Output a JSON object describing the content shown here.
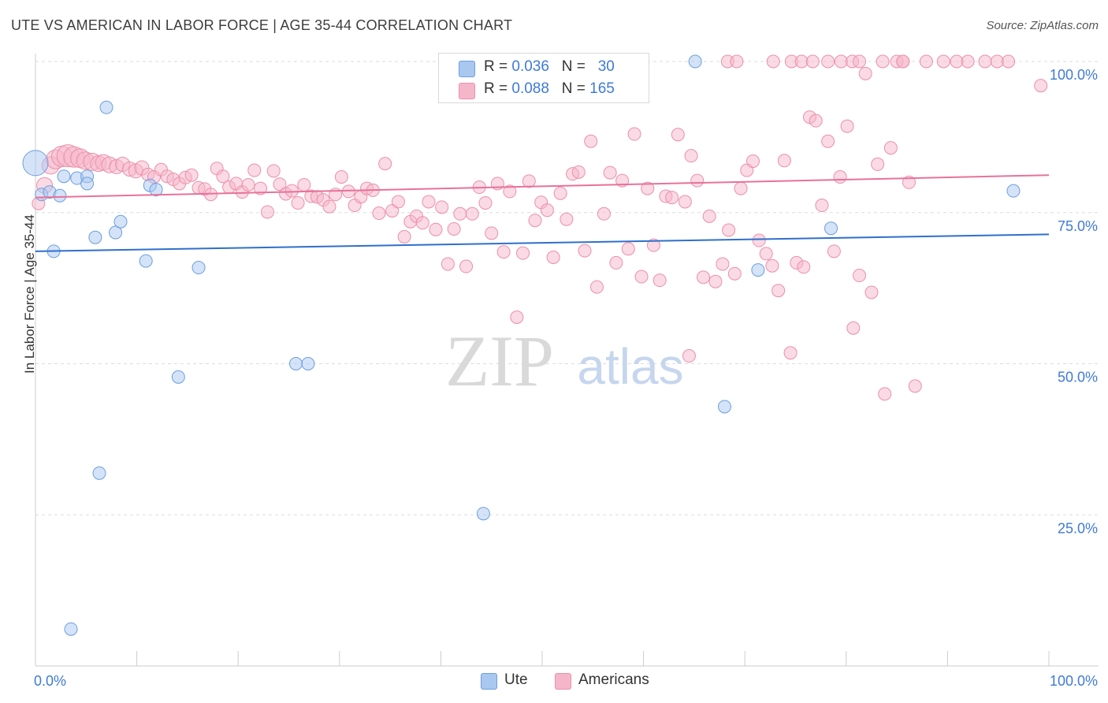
{
  "header": {
    "title": "UTE VS AMERICAN IN LABOR FORCE | AGE 35-44 CORRELATION CHART",
    "source": "Source: ZipAtlas.com"
  },
  "watermark": {
    "zip": "ZIP",
    "atlas": "atlas"
  },
  "legend": {
    "rows": [
      {
        "r_label": "R = ",
        "r_value": "0.036",
        "n_label": "N = ",
        "n_value": "30",
        "color": "#a9c8f0"
      },
      {
        "r_label": "R = ",
        "r_value": "0.088",
        "n_label": "N = ",
        "n_value": "165",
        "color": "#f6b6c9"
      }
    ]
  },
  "bottom_legend": {
    "items": [
      {
        "label": "Ute",
        "color": "#a9c8f0"
      },
      {
        "label": "Americans",
        "color": "#f6b6c9"
      }
    ]
  },
  "colors": {
    "ute_fill": "#a9c8f0",
    "ute_stroke": "#6d9ee0",
    "ute_line": "#2f6fcc",
    "am_fill": "#f6b6c9",
    "am_stroke": "#ec8fab",
    "am_line": "#e8719a",
    "tick_label": "#3f7ad6",
    "grid": "#dddddd",
    "axis": "#cccccc"
  },
  "chart_data": {
    "type": "scatter",
    "title": "UTE VS AMERICAN IN LABOR FORCE | AGE 35-44 CORRELATION CHART",
    "xlabel": "",
    "ylabel": "In Labor Force | Age 35-44",
    "xlim": [
      0,
      100
    ],
    "ylim": [
      0,
      100
    ],
    "x_tick_labels": [
      "0.0%",
      "100.0%"
    ],
    "y_tick_labels": [
      "25.0%",
      "50.0%",
      "75.0%",
      "100.0%"
    ],
    "y_ticks": [
      25,
      50,
      75,
      100
    ],
    "grid": true,
    "legend_position": "top-center",
    "series": [
      {
        "name": "Ute",
        "r": 0.036,
        "n": 30,
        "trend": [
          [
            0,
            68.6
          ],
          [
            100,
            71.4
          ]
        ],
        "points": [
          [
            0.0,
            83.2,
            16
          ],
          [
            0.6,
            78.0,
            8
          ],
          [
            1.4,
            78.4,
            8
          ],
          [
            2.4,
            77.8,
            8
          ],
          [
            1.8,
            68.6,
            8
          ],
          [
            2.8,
            81.0,
            8
          ],
          [
            4.1,
            80.7,
            8
          ],
          [
            5.1,
            81.0,
            8
          ],
          [
            5.1,
            79.8,
            8
          ],
          [
            5.9,
            70.9,
            8
          ],
          [
            7.0,
            92.4,
            8
          ],
          [
            7.9,
            71.7,
            8
          ],
          [
            8.4,
            73.5,
            8
          ],
          [
            10.9,
            67.0,
            8
          ],
          [
            11.3,
            79.5,
            8
          ],
          [
            11.9,
            78.8,
            8
          ],
          [
            16.1,
            65.9,
            8
          ],
          [
            14.1,
            47.8,
            8
          ],
          [
            6.3,
            31.9,
            8
          ],
          [
            3.5,
            6.1,
            8
          ],
          [
            25.7,
            50.0,
            8
          ],
          [
            26.9,
            50.0,
            8
          ],
          [
            44.2,
            25.2,
            8
          ],
          [
            65.1,
            100.0,
            8
          ],
          [
            68.0,
            42.9,
            8
          ],
          [
            71.3,
            65.5,
            8
          ],
          [
            78.5,
            72.4,
            8
          ],
          [
            96.5,
            78.6,
            8
          ]
        ]
      },
      {
        "name": "Americans",
        "r": 0.088,
        "n": 165,
        "trend": [
          [
            0,
            77.5
          ],
          [
            100,
            81.2
          ]
        ],
        "points": [
          [
            0.3,
            76.5,
            8
          ],
          [
            0.9,
            79.5,
            10
          ],
          [
            1.5,
            82.8,
            11
          ],
          [
            2.0,
            83.8,
            12
          ],
          [
            2.6,
            84.3,
            13
          ],
          [
            3.2,
            84.4,
            14
          ],
          [
            3.8,
            84.2,
            13
          ],
          [
            4.4,
            84.0,
            12
          ],
          [
            4.9,
            83.6,
            11
          ],
          [
            5.6,
            83.4,
            11
          ],
          [
            6.2,
            83.1,
            10
          ],
          [
            6.7,
            83.3,
            10
          ],
          [
            7.3,
            82.9,
            10
          ],
          [
            8.0,
            82.6,
            9
          ],
          [
            8.6,
            83.0,
            9
          ],
          [
            9.3,
            82.2,
            9
          ],
          [
            9.9,
            81.9,
            9
          ],
          [
            10.5,
            82.4,
            9
          ],
          [
            11.1,
            81.3,
            8
          ],
          [
            11.7,
            80.9,
            8
          ],
          [
            12.4,
            82.1,
            8
          ],
          [
            13.0,
            81.0,
            8
          ],
          [
            13.6,
            80.5,
            8
          ],
          [
            14.2,
            79.8,
            8
          ],
          [
            14.8,
            80.8,
            8
          ],
          [
            15.4,
            81.2,
            8
          ],
          [
            16.1,
            79.1,
            8
          ],
          [
            16.7,
            78.9,
            8
          ],
          [
            17.3,
            78.0,
            8
          ],
          [
            17.9,
            82.3,
            8
          ],
          [
            18.5,
            81.0,
            8
          ],
          [
            19.1,
            79.2,
            8
          ],
          [
            19.8,
            79.8,
            8
          ],
          [
            20.4,
            78.4,
            8
          ],
          [
            21.0,
            79.6,
            8
          ],
          [
            21.6,
            82.0,
            8
          ],
          [
            22.2,
            79.0,
            8
          ],
          [
            22.9,
            75.1,
            8
          ],
          [
            23.5,
            81.9,
            8
          ],
          [
            24.1,
            79.7,
            8
          ],
          [
            24.7,
            78.1,
            8
          ],
          [
            25.3,
            78.6,
            8
          ],
          [
            25.9,
            76.6,
            8
          ],
          [
            26.5,
            79.6,
            8
          ],
          [
            27.2,
            77.7,
            8
          ],
          [
            27.8,
            77.6,
            8
          ],
          [
            28.4,
            77.1,
            8
          ],
          [
            29.0,
            76.0,
            8
          ],
          [
            29.6,
            78.0,
            8
          ],
          [
            30.2,
            80.9,
            8
          ],
          [
            30.9,
            78.5,
            8
          ],
          [
            31.5,
            76.2,
            8
          ],
          [
            32.1,
            77.6,
            8
          ],
          [
            32.7,
            79.0,
            8
          ],
          [
            33.3,
            78.7,
            8
          ],
          [
            33.9,
            74.9,
            8
          ],
          [
            34.5,
            83.1,
            8
          ],
          [
            35.2,
            75.3,
            8
          ],
          [
            35.8,
            76.8,
            8
          ],
          [
            36.4,
            71.0,
            8
          ],
          [
            37.0,
            73.5,
            8
          ],
          [
            37.6,
            74.4,
            8
          ],
          [
            38.2,
            73.3,
            8
          ],
          [
            38.8,
            76.8,
            8
          ],
          [
            39.5,
            72.2,
            8
          ],
          [
            40.1,
            75.9,
            8
          ],
          [
            40.7,
            66.5,
            8
          ],
          [
            41.3,
            72.3,
            8
          ],
          [
            41.9,
            74.8,
            8
          ],
          [
            42.5,
            66.1,
            8
          ],
          [
            43.1,
            74.8,
            8
          ],
          [
            43.8,
            79.2,
            8
          ],
          [
            44.4,
            76.6,
            8
          ],
          [
            45.0,
            71.6,
            8
          ],
          [
            45.6,
            79.8,
            8
          ],
          [
            46.2,
            68.5,
            8
          ],
          [
            46.8,
            78.5,
            8
          ],
          [
            47.5,
            57.7,
            8
          ],
          [
            48.1,
            68.3,
            8
          ],
          [
            48.7,
            80.2,
            8
          ],
          [
            49.3,
            73.7,
            8
          ],
          [
            49.9,
            76.7,
            8
          ],
          [
            50.5,
            75.4,
            8
          ],
          [
            51.1,
            67.6,
            8
          ],
          [
            51.8,
            78.2,
            8
          ],
          [
            52.4,
            73.9,
            8
          ],
          [
            53.0,
            81.4,
            8
          ],
          [
            53.6,
            81.7,
            8
          ],
          [
            54.2,
            68.7,
            8
          ],
          [
            54.8,
            86.8,
            8
          ],
          [
            55.4,
            62.7,
            8
          ],
          [
            56.1,
            74.8,
            8
          ],
          [
            56.7,
            81.6,
            8
          ],
          [
            57.3,
            66.7,
            8
          ],
          [
            57.9,
            80.3,
            8
          ],
          [
            58.5,
            69.0,
            8
          ],
          [
            59.1,
            88.0,
            8
          ],
          [
            59.8,
            64.4,
            8
          ],
          [
            60.4,
            79.0,
            8
          ],
          [
            61.0,
            69.6,
            8
          ],
          [
            61.6,
            63.8,
            8
          ],
          [
            62.2,
            77.7,
            8
          ],
          [
            62.8,
            77.5,
            8
          ],
          [
            63.4,
            87.9,
            8
          ],
          [
            64.1,
            76.8,
            8
          ],
          [
            64.7,
            84.4,
            8
          ],
          [
            65.3,
            80.3,
            8
          ],
          [
            65.9,
            64.3,
            8
          ],
          [
            66.5,
            74.4,
            8
          ],
          [
            67.1,
            63.6,
            8
          ],
          [
            67.8,
            66.5,
            8
          ],
          [
            68.4,
            72.1,
            8
          ],
          [
            69.0,
            64.9,
            8
          ],
          [
            69.6,
            79.0,
            8
          ],
          [
            70.2,
            82.0,
            8
          ],
          [
            70.8,
            83.5,
            8
          ],
          [
            71.4,
            70.4,
            8
          ],
          [
            72.1,
            68.2,
            8
          ],
          [
            72.7,
            66.2,
            8
          ],
          [
            73.3,
            62.1,
            8
          ],
          [
            73.9,
            83.6,
            8
          ],
          [
            74.5,
            51.8,
            8
          ],
          [
            75.1,
            66.7,
            8
          ],
          [
            75.8,
            66.0,
            8
          ],
          [
            76.4,
            90.8,
            8
          ],
          [
            77.0,
            90.2,
            8
          ],
          [
            77.6,
            76.2,
            8
          ],
          [
            78.2,
            86.8,
            8
          ],
          [
            78.8,
            68.6,
            8
          ],
          [
            79.4,
            80.9,
            8
          ],
          [
            80.1,
            89.3,
            8
          ],
          [
            80.7,
            55.9,
            8
          ],
          [
            81.3,
            64.6,
            8
          ],
          [
            81.9,
            98.0,
            8
          ],
          [
            82.5,
            61.8,
            8
          ],
          [
            83.1,
            83.0,
            8
          ],
          [
            83.8,
            45.0,
            8
          ],
          [
            84.4,
            85.7,
            8
          ],
          [
            85.0,
            100.0,
            8
          ],
          [
            85.6,
            100.0,
            8
          ],
          [
            86.2,
            80.0,
            8
          ],
          [
            86.8,
            46.3,
            8
          ],
          [
            64.5,
            51.3,
            8
          ],
          [
            68.3,
            100.0,
            8
          ],
          [
            69.2,
            100.0,
            8
          ],
          [
            72.8,
            100.0,
            8
          ],
          [
            74.6,
            100.0,
            8
          ],
          [
            75.6,
            100.0,
            8
          ],
          [
            76.7,
            100.0,
            8
          ],
          [
            78.2,
            100.0,
            8
          ],
          [
            79.5,
            100.0,
            8
          ],
          [
            80.6,
            100.0,
            8
          ],
          [
            81.3,
            100.0,
            8
          ],
          [
            83.6,
            100.0,
            8
          ],
          [
            85.6,
            100.0,
            8
          ],
          [
            87.9,
            100.0,
            8
          ],
          [
            89.6,
            100.0,
            8
          ],
          [
            90.9,
            100.0,
            8
          ],
          [
            92.0,
            100.0,
            8
          ],
          [
            93.7,
            100.0,
            8
          ],
          [
            94.9,
            100.0,
            8
          ],
          [
            96.0,
            100.0,
            8
          ],
          [
            99.2,
            96.0,
            8
          ]
        ]
      }
    ]
  }
}
